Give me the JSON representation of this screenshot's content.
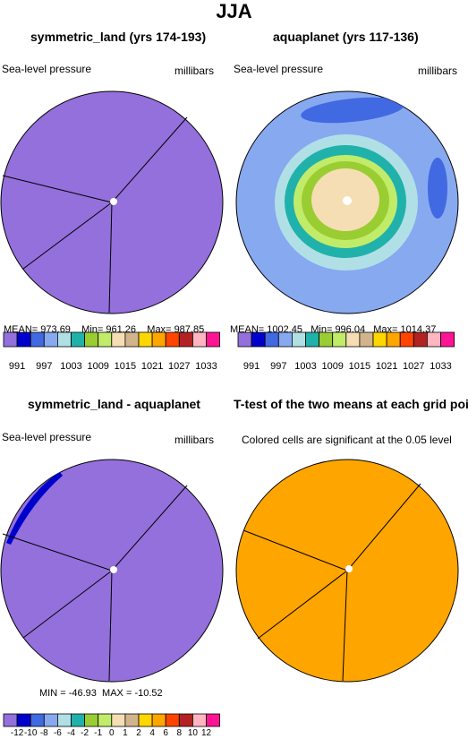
{
  "figure_title": "JJA",
  "panels": [
    {
      "title": "symmetric_land (yrs 174-193)",
      "left_label": "Sea-level pressure",
      "right_label": "millibars",
      "stats": {
        "mean_label": "MEAN=",
        "mean": "973.69",
        "min_label": "Min=",
        "min": "961.26",
        "max_label": "Max=",
        "max": "987.85"
      }
    },
    {
      "title": "aquaplanet (yrs 117-136)",
      "left_label": "Sea-level pressure",
      "right_label": "millibars",
      "stats": {
        "mean_label": "MEAN=",
        "mean": "1002.45",
        "min_label": "Min=",
        "min": "996.04",
        "max_label": "Max=",
        "max": "1014.37"
      }
    },
    {
      "title": "symmetric_land - aquaplanet",
      "left_label": "Sea-level pressure",
      "right_label": "millibars",
      "stats": {
        "min_label": "MIN =",
        "min": "-46.93",
        "max_label": "MAX =",
        "max": "-10.52"
      }
    },
    {
      "title": "T-test of the two means at each grid point",
      "left_label": "Colored cells are significant at the 0.05 level",
      "right_label": ""
    }
  ],
  "colorbars": {
    "absolute": {
      "colors": [
        "#9370db",
        "#0000cd",
        "#4169e1",
        "#87a9f0",
        "#b0e0e6",
        "#20b2aa",
        "#9acd32",
        "#c1ec6a",
        "#f5deb3",
        "#d2b48c",
        "#ffd700",
        "#ffa500",
        "#ff4500",
        "#b22222",
        "#ffb6c1",
        "#ff1493"
      ],
      "labels": [
        "991",
        "997",
        "1003",
        "1009",
        "1015",
        "1021",
        "1027",
        "1033"
      ]
    },
    "difference": {
      "colors": [
        "#9370db",
        "#0000cd",
        "#4169e1",
        "#87a9f0",
        "#b0e0e6",
        "#20b2aa",
        "#9acd32",
        "#c1ec6a",
        "#f5deb3",
        "#d2b48c",
        "#ffd700",
        "#ffa500",
        "#ff4500",
        "#b22222",
        "#ffb6c1",
        "#ff1493"
      ],
      "labels": [
        "-12",
        "-10",
        "-8",
        "-6",
        "-4",
        "-2",
        "-1",
        "0",
        "1",
        "2",
        "4",
        "6",
        "8",
        "10",
        "12"
      ]
    }
  },
  "chart_data": [
    {
      "type": "heatmap",
      "title": "symmetric_land (yrs 174-193)",
      "variable": "Sea-level pressure",
      "units": "millibars",
      "projection": "polar",
      "mean": 973.69,
      "min": 961.26,
      "max": 987.85,
      "dominant_level": "< 991",
      "colors": {
        "field": "#9370db"
      }
    },
    {
      "type": "heatmap",
      "title": "aquaplanet (yrs 117-136)",
      "variable": "Sea-level pressure",
      "units": "millibars",
      "projection": "polar",
      "mean": 1002.45,
      "min": 996.04,
      "max": 1014.37,
      "levels_center_to_edge": [
        "1009-1015",
        "1003-1009",
        "1003-1009",
        "997-1003",
        "997-1003",
        "< 997"
      ],
      "colors": {
        "outer": "#87a9f0",
        "ring1": "#b0e0e6",
        "ring2": "#20b2aa",
        "ring3": "#c1ec6a",
        "ring4": "#9acd32",
        "center": "#f5deb3",
        "patch": "#4169e1"
      }
    },
    {
      "type": "heatmap",
      "title": "symmetric_land - aquaplanet",
      "variable": "Sea-level pressure",
      "units": "millibars",
      "projection": "polar",
      "min": -46.93,
      "max": -10.52,
      "dominant_level": "< -12",
      "colors": {
        "field": "#9370db",
        "edge": "#0000cd"
      }
    },
    {
      "type": "heatmap",
      "title": "T-test of the two means at each grid point",
      "note": "Colored cells are significant at the 0.05 level",
      "projection": "polar",
      "colors": {
        "field": "#ffa500"
      }
    }
  ]
}
